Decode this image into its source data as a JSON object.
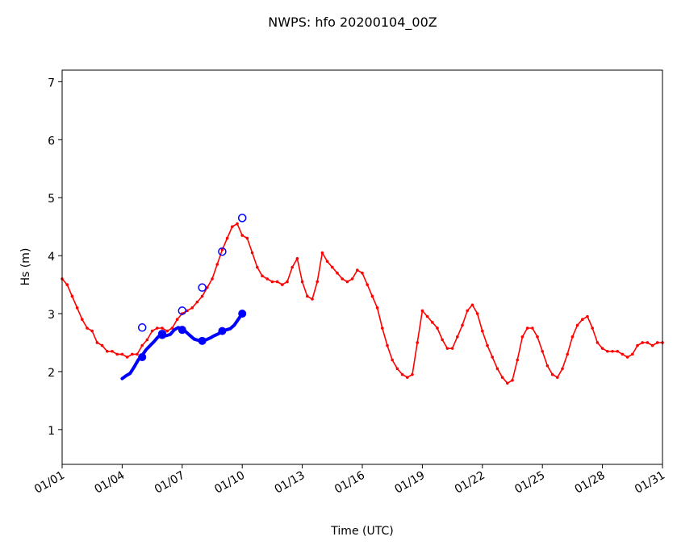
{
  "chart_data": {
    "type": "line",
    "title": "NWPS: hfo 20200104_00Z",
    "xlabel": "Time (UTC)",
    "ylabel": "Hs (m)",
    "xlim": [
      0,
      30
    ],
    "ylim": [
      0.4,
      7.2
    ],
    "x_ticks": [
      {
        "day": 0,
        "label": "01/01"
      },
      {
        "day": 3,
        "label": "01/04"
      },
      {
        "day": 6,
        "label": "01/07"
      },
      {
        "day": 9,
        "label": "01/10"
      },
      {
        "day": 12,
        "label": "01/13"
      },
      {
        "day": 15,
        "label": "01/16"
      },
      {
        "day": 18,
        "label": "01/19"
      },
      {
        "day": 21,
        "label": "01/22"
      },
      {
        "day": 24,
        "label": "01/25"
      },
      {
        "day": 27,
        "label": "01/28"
      },
      {
        "day": 30,
        "label": "01/31"
      }
    ],
    "y_ticks": [
      1,
      2,
      3,
      4,
      5,
      6,
      7
    ],
    "colors": {
      "observed": "#ff0000",
      "forecast": "#0000ff"
    },
    "series": [
      {
        "color": "#ff0000",
        "style": "line-with-dot-markers",
        "points": [
          [
            0.0,
            3.6
          ],
          [
            0.25,
            3.5
          ],
          [
            0.5,
            3.3
          ],
          [
            0.75,
            3.1
          ],
          [
            1.0,
            2.9
          ],
          [
            1.25,
            2.75
          ],
          [
            1.5,
            2.7
          ],
          [
            1.75,
            2.5
          ],
          [
            2.0,
            2.45
          ],
          [
            2.25,
            2.35
          ],
          [
            2.5,
            2.35
          ],
          [
            2.75,
            2.3
          ],
          [
            3.0,
            2.3
          ],
          [
            3.25,
            2.25
          ],
          [
            3.5,
            2.3
          ],
          [
            3.75,
            2.3
          ],
          [
            4.0,
            2.45
          ],
          [
            4.25,
            2.55
          ],
          [
            4.5,
            2.7
          ],
          [
            4.75,
            2.75
          ],
          [
            5.0,
            2.75
          ],
          [
            5.25,
            2.7
          ],
          [
            5.5,
            2.75
          ],
          [
            5.75,
            2.9
          ],
          [
            6.0,
            3.0
          ],
          [
            6.25,
            3.05
          ],
          [
            6.5,
            3.1
          ],
          [
            6.75,
            3.2
          ],
          [
            7.0,
            3.3
          ],
          [
            7.25,
            3.45
          ],
          [
            7.5,
            3.6
          ],
          [
            7.75,
            3.85
          ],
          [
            8.0,
            4.1
          ],
          [
            8.25,
            4.3
          ],
          [
            8.5,
            4.5
          ],
          [
            8.75,
            4.55
          ],
          [
            9.0,
            4.35
          ],
          [
            9.25,
            4.3
          ],
          [
            9.5,
            4.05
          ],
          [
            9.75,
            3.8
          ],
          [
            10.0,
            3.65
          ],
          [
            10.25,
            3.6
          ],
          [
            10.5,
            3.55
          ],
          [
            10.75,
            3.55
          ],
          [
            11.0,
            3.5
          ],
          [
            11.25,
            3.55
          ],
          [
            11.5,
            3.8
          ],
          [
            11.75,
            3.95
          ],
          [
            12.0,
            3.55
          ],
          [
            12.25,
            3.3
          ],
          [
            12.5,
            3.25
          ],
          [
            12.75,
            3.55
          ],
          [
            13.0,
            4.05
          ],
          [
            13.25,
            3.9
          ],
          [
            13.5,
            3.8
          ],
          [
            13.75,
            3.7
          ],
          [
            14.0,
            3.6
          ],
          [
            14.25,
            3.55
          ],
          [
            14.5,
            3.6
          ],
          [
            14.75,
            3.75
          ],
          [
            15.0,
            3.7
          ],
          [
            15.25,
            3.5
          ],
          [
            15.5,
            3.3
          ],
          [
            15.75,
            3.1
          ],
          [
            16.0,
            2.75
          ],
          [
            16.25,
            2.45
          ],
          [
            16.5,
            2.2
          ],
          [
            16.75,
            2.05
          ],
          [
            17.0,
            1.95
          ],
          [
            17.25,
            1.9
          ],
          [
            17.5,
            1.95
          ],
          [
            17.75,
            2.5
          ],
          [
            18.0,
            3.05
          ],
          [
            18.25,
            2.95
          ],
          [
            18.5,
            2.85
          ],
          [
            18.75,
            2.75
          ],
          [
            19.0,
            2.55
          ],
          [
            19.25,
            2.4
          ],
          [
            19.5,
            2.4
          ],
          [
            19.75,
            2.6
          ],
          [
            20.0,
            2.8
          ],
          [
            20.25,
            3.05
          ],
          [
            20.5,
            3.15
          ],
          [
            20.75,
            3.0
          ],
          [
            21.0,
            2.7
          ],
          [
            21.25,
            2.45
          ],
          [
            21.5,
            2.25
          ],
          [
            21.75,
            2.05
          ],
          [
            22.0,
            1.9
          ],
          [
            22.25,
            1.8
          ],
          [
            22.5,
            1.85
          ],
          [
            22.75,
            2.2
          ],
          [
            23.0,
            2.6
          ],
          [
            23.25,
            2.75
          ],
          [
            23.5,
            2.75
          ],
          [
            23.75,
            2.6
          ],
          [
            24.0,
            2.35
          ],
          [
            24.25,
            2.1
          ],
          [
            24.5,
            1.95
          ],
          [
            24.75,
            1.9
          ],
          [
            25.0,
            2.05
          ],
          [
            25.25,
            2.3
          ],
          [
            25.5,
            2.6
          ],
          [
            25.75,
            2.8
          ],
          [
            26.0,
            2.9
          ],
          [
            26.25,
            2.95
          ],
          [
            26.5,
            2.75
          ],
          [
            26.75,
            2.5
          ],
          [
            27.0,
            2.4
          ],
          [
            27.25,
            2.35
          ],
          [
            27.5,
            2.35
          ],
          [
            27.75,
            2.35
          ],
          [
            28.0,
            2.3
          ],
          [
            28.25,
            2.25
          ],
          [
            28.5,
            2.3
          ],
          [
            28.75,
            2.45
          ],
          [
            29.0,
            2.5
          ],
          [
            29.25,
            2.5
          ],
          [
            29.5,
            2.45
          ],
          [
            29.75,
            2.5
          ],
          [
            30.0,
            2.5
          ]
        ]
      },
      {
        "color": "#0000ff",
        "style": "thick-line",
        "points": [
          [
            3.0,
            1.88
          ],
          [
            3.2,
            1.93
          ],
          [
            3.4,
            1.97
          ],
          [
            3.6,
            2.08
          ],
          [
            3.8,
            2.2
          ],
          [
            4.0,
            2.28
          ],
          [
            4.2,
            2.38
          ],
          [
            4.4,
            2.45
          ],
          [
            4.6,
            2.52
          ],
          [
            4.8,
            2.6
          ],
          [
            5.0,
            2.63
          ],
          [
            5.2,
            2.62
          ],
          [
            5.4,
            2.64
          ],
          [
            5.6,
            2.72
          ],
          [
            5.8,
            2.76
          ],
          [
            6.0,
            2.74
          ],
          [
            6.2,
            2.68
          ],
          [
            6.4,
            2.62
          ],
          [
            6.6,
            2.56
          ],
          [
            6.8,
            2.54
          ],
          [
            7.0,
            2.53
          ],
          [
            7.2,
            2.55
          ],
          [
            7.4,
            2.58
          ],
          [
            7.6,
            2.62
          ],
          [
            7.8,
            2.65
          ],
          [
            8.0,
            2.7
          ],
          [
            8.2,
            2.72
          ],
          [
            8.4,
            2.74
          ],
          [
            8.6,
            2.8
          ],
          [
            8.8,
            2.9
          ],
          [
            9.0,
            3.0
          ]
        ]
      },
      {
        "color": "#0000ff",
        "style": "filled-dot-markers",
        "points": [
          [
            4.0,
            2.25
          ],
          [
            5.0,
            2.63
          ],
          [
            6.0,
            2.72
          ],
          [
            7.0,
            2.53
          ],
          [
            8.0,
            2.7
          ],
          [
            9.0,
            3.0
          ]
        ]
      },
      {
        "color": "#0000ff",
        "style": "open-circle-markers",
        "points": [
          [
            4.0,
            2.76
          ],
          [
            5.0,
            2.65
          ],
          [
            6.0,
            3.05
          ],
          [
            7.0,
            3.45
          ],
          [
            8.0,
            4.07
          ],
          [
            9.0,
            4.65
          ]
        ]
      }
    ]
  }
}
